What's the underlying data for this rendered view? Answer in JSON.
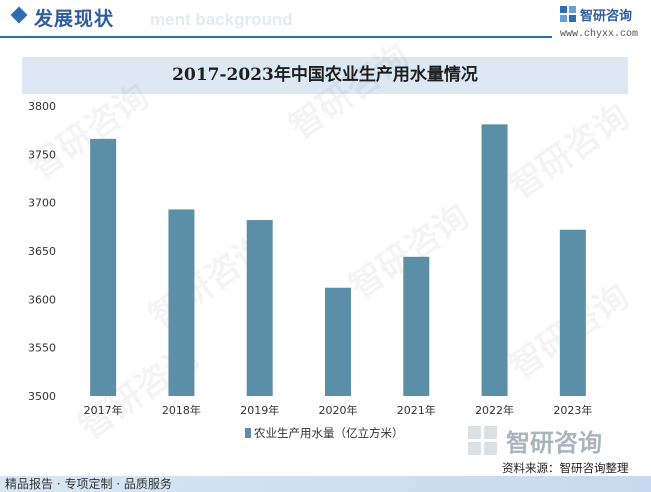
{
  "header": {
    "section_title": "发展现状",
    "bg_text": "ment background",
    "brand_name": "智研咨询",
    "brand_url": "www.chyxx.com"
  },
  "watermark_logo_text": "智研咨询",
  "chart_data": {
    "type": "bar",
    "title": "2017-2023年中国农业生产用水量情况",
    "categories": [
      "2017年",
      "2018年",
      "2019年",
      "2020年",
      "2021年",
      "2022年",
      "2023年"
    ],
    "series": [
      {
        "name": "农业生产用水量（亿立方米）",
        "values": [
          3766,
          3693,
          3682,
          3612,
          3644,
          3781,
          3672
        ]
      }
    ],
    "ylim": [
      3500,
      3800
    ],
    "yticks": [
      3500,
      3550,
      3600,
      3650,
      3700,
      3750,
      3800
    ],
    "xlabel": "",
    "ylabel": "",
    "grid": false,
    "legend_position": "bottom-center",
    "bar_color": "#5b8fa8"
  },
  "footer": {
    "services": "精品报告 · 专项定制 · 品质服务",
    "source": "资料来源：智研咨询整理"
  },
  "colors": {
    "accent": "#2f6db3",
    "title_band": "#dce8f3",
    "bar": "#5b8fa8"
  }
}
